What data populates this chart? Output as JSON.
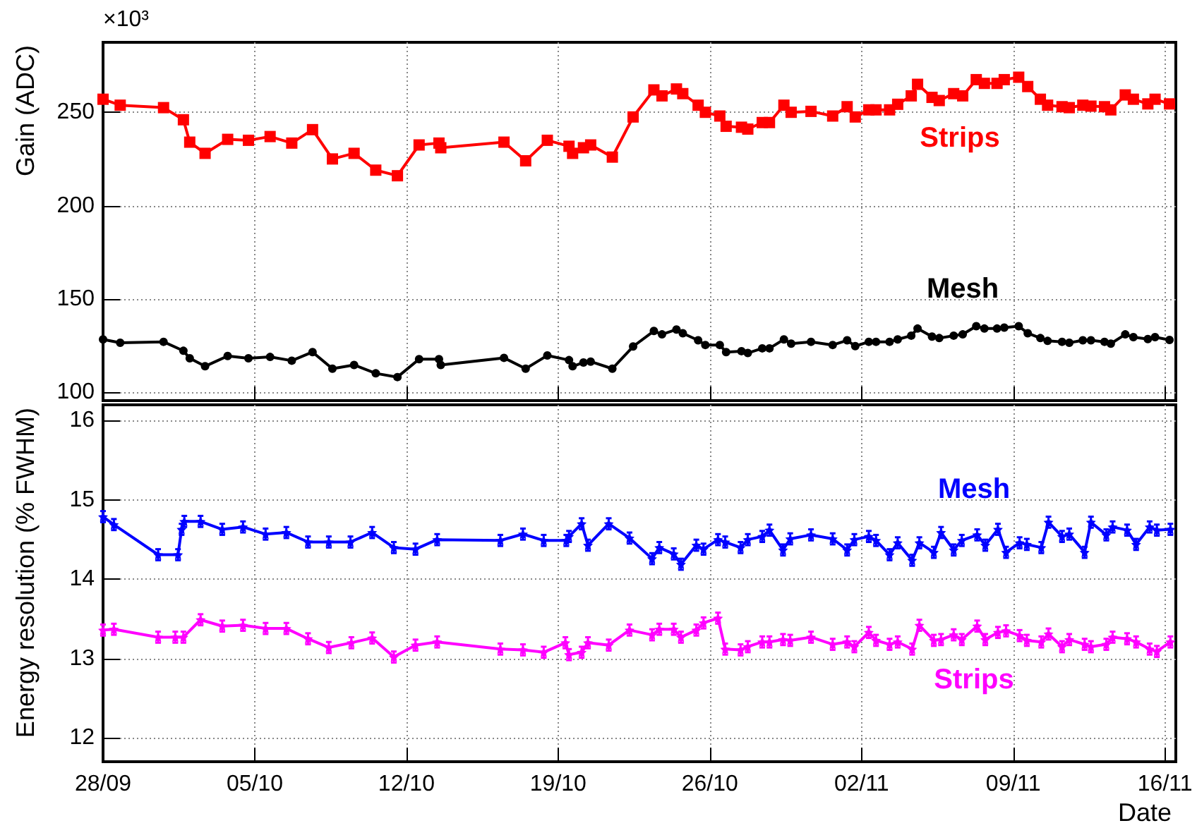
{
  "chart_data": [
    {
      "type": "line",
      "ylabel": "Gain (ADC)",
      "annotations": [
        "×10³"
      ],
      "x": [
        "--09-28T00:00",
        "--09-28T19:00",
        "--09-30T19:00",
        "--10-01T17:00",
        "--10-02T00:00",
        "--10-02T17:00",
        "--10-03T18:00",
        "--10-04T17:00",
        "--10-05T17:00",
        "--10-06T17:00",
        "--10-07T16:00",
        "--10-08T14:00",
        "--10-09T14:00",
        "--10-10T14:00",
        "--10-11T14:00",
        "--10-12T14:00",
        "--10-13T12:00",
        "--10-13T14:00",
        "--10-16T12:00",
        "--10-17T12:00",
        "--10-18T12:00",
        "--10-19T12:00",
        "--10-19T16:00",
        "--10-20T04:00",
        "--10-20T12:00",
        "--10-21T12:00",
        "--10-22T11:00",
        "--10-23T10:00",
        "--10-23T19:00",
        "--10-24T11:00",
        "--10-24T18:00",
        "--10-25T11:00",
        "--10-25T19:00",
        "--10-26T11:00",
        "--10-26T18:00",
        "--10-27T11:00",
        "--10-27T18:00",
        "--10-28T10:00",
        "--10-28T18:00",
        "--10-29T10:00",
        "--10-29T18:00",
        "--10-30T16:00",
        "--10-31T16:00",
        "--11-01T08:00",
        "--11-01T17:00",
        "--11-02T08:00",
        "--11-02T16:00",
        "--11-03T07:00",
        "--11-03T16:00",
        "--11-04T07:00",
        "--11-04T14:00",
        "--11-05T06:00",
        "--11-05T14:00",
        "--11-06T06:00",
        "--11-06T16:00",
        "--11-07T07:00",
        "--11-07T16:00",
        "--11-08T06:00",
        "--11-08T14:00",
        "--11-09T06:00",
        "--11-09T16:00",
        "--11-10T06:00",
        "--11-10T14:00",
        "--11-11T06:00",
        "--11-11T14:00",
        "--11-12T05:00",
        "--11-12T14:00",
        "--11-13T05:00",
        "--11-13T12:00",
        "--11-14T04:00",
        "--11-14T13:00",
        "--11-15T05:00",
        "--11-15T13:00",
        "--11-16T05:00"
      ],
      "series": [
        {
          "name": "Strips",
          "color": "#ff0000",
          "marker": "square",
          "values": [
            257,
            253.8,
            252.5,
            246,
            234,
            228,
            235.5,
            235,
            237,
            233.5,
            240.7,
            225,
            228,
            219,
            216,
            232.5,
            233.5,
            231,
            234,
            224,
            235,
            231.8,
            228,
            231,
            232.5,
            226,
            247.5,
            262,
            258.8,
            262.5,
            260,
            253.8,
            250,
            248,
            242.5,
            242,
            241,
            244.5,
            244.5,
            253.8,
            250,
            250.5,
            248,
            253,
            247.5,
            251.3,
            251.3,
            251.3,
            254.3,
            258.8,
            265,
            258,
            256.3,
            260,
            258.8,
            267.5,
            265.5,
            265.5,
            267.5,
            268.8,
            263.8,
            257,
            253.8,
            253,
            252.5,
            253.8,
            253.3,
            253,
            251.3,
            259.3,
            257,
            254.5,
            257,
            254.5
          ]
        },
        {
          "name": "Mesh",
          "color": "#000000",
          "marker": "circle",
          "values": [
            128.3,
            126.5,
            127,
            122.2,
            118.2,
            113.9,
            119.4,
            118.2,
            118.9,
            116.9,
            121.5,
            112.6,
            114.6,
            110.1,
            108.1,
            117.7,
            117.7,
            114.6,
            118.4,
            112.6,
            119.7,
            117.2,
            113.9,
            115.9,
            116.4,
            112.6,
            124.5,
            132.8,
            131,
            133.6,
            131.6,
            127.8,
            125.3,
            125.3,
            121.5,
            122,
            121,
            123.5,
            123.5,
            128.3,
            126,
            127,
            125.3,
            127.8,
            124.7,
            127,
            127,
            127,
            128.3,
            130.3,
            134.1,
            129.8,
            129,
            130.3,
            131,
            135.4,
            134.1,
            134.1,
            134.6,
            135.4,
            131.6,
            129,
            127.5,
            127,
            126.5,
            127.8,
            127.8,
            127,
            126,
            131,
            129.5,
            128.5,
            129.5,
            128
          ]
        }
      ],
      "xlim": [
        "--09-28",
        "--11-16T12:00"
      ],
      "xticks": [
        {
          "value": "--09-28",
          "label": "28/09"
        },
        {
          "value": "--10-05",
          "label": "05/10"
        },
        {
          "value": "--10-12",
          "label": "12/10"
        },
        {
          "value": "--10-19",
          "label": "19/10"
        },
        {
          "value": "--10-26",
          "label": "26/10"
        },
        {
          "value": "--11-02",
          "label": "02/11"
        },
        {
          "value": "--11-09",
          "label": "09/11"
        },
        {
          "value": "--11-16",
          "label": "16/11"
        }
      ],
      "ylim": [
        95.5,
        287.5
      ],
      "yticks": [
        100,
        150,
        200,
        250
      ],
      "grid": true,
      "tick_labels": "y"
    },
    {
      "type": "line",
      "ylabel": "Energy resolution (% FWHM)",
      "xlabel": "Date",
      "series": [
        {
          "name": "Mesh",
          "color": "#0000ff",
          "marker": "star",
          "x": [
            "--09-28T00:00",
            "--09-28T12:00",
            "--09-30T13:00",
            "--10-01T11:00",
            "--10-01T15:00",
            "--10-01T18:00",
            "--10-02T12:00",
            "--10-03T12:00",
            "--10-04T11:00",
            "--10-05T12:00",
            "--10-06T11:00",
            "--10-07T11:00",
            "--10-08T10:00",
            "--10-09T10:00",
            "--10-10T10:00",
            "--10-11T10:00",
            "--10-12T10:00",
            "--10-13T10:00",
            "--10-16T08:00",
            "--10-17T09:00",
            "--10-18T08:00",
            "--10-19T09:00",
            "--10-19T12:00",
            "--10-20T02:00",
            "--10-20T09:00",
            "--10-21T08:00",
            "--10-22T07:00",
            "--10-23T08:00",
            "--10-23T16:00",
            "--10-24T08:00",
            "--10-24T16:00",
            "--10-25T09:00",
            "--10-25T17:00",
            "--10-26T09:00",
            "--10-26T17:00",
            "--10-27T10:00",
            "--10-27T18:00",
            "--10-28T10:00",
            "--10-28T18:00",
            "--10-29T09:00",
            "--10-29T17:00",
            "--10-30T16:00",
            "--10-31T16:00",
            "--11-01T08:00",
            "--11-01T16:00",
            "--11-02T08:00",
            "--11-02T16:00",
            "--11-03T07:00",
            "--11-03T16:00",
            "--11-04T08:00",
            "--11-04T16:00",
            "--11-05T08:00",
            "--11-05T16:00",
            "--11-06T06:00",
            "--11-06T15:00",
            "--11-07T08:00",
            "--11-07T17:00",
            "--11-08T07:00",
            "--11-08T16:00",
            "--11-09T07:00",
            "--11-09T15:00",
            "--11-10T07:00",
            "--11-10T15:00",
            "--11-11T06:00",
            "--11-11T14:00",
            "--11-12T07:00",
            "--11-12T14:00",
            "--11-13T07:00",
            "--11-13T14:00",
            "--11-14T06:00",
            "--11-14T16:00",
            "--11-15T07:00",
            "--11-15T15:00",
            "--11-16T06:00"
          ],
          "values": [
            14.79,
            14.69,
            14.31,
            14.31,
            14.63,
            14.73,
            14.73,
            14.63,
            14.66,
            14.57,
            14.59,
            14.47,
            14.47,
            14.47,
            14.59,
            14.4,
            14.38,
            14.5,
            14.49,
            14.57,
            14.49,
            14.49,
            14.54,
            14.7,
            14.43,
            14.7,
            14.52,
            14.26,
            14.4,
            14.32,
            14.19,
            14.43,
            14.38,
            14.5,
            14.47,
            14.4,
            14.5,
            14.54,
            14.62,
            14.37,
            14.51,
            14.56,
            14.51,
            14.37,
            14.5,
            14.54,
            14.49,
            14.31,
            14.46,
            14.24,
            14.46,
            14.34,
            14.59,
            14.37,
            14.49,
            14.56,
            14.43,
            14.63,
            14.34,
            14.46,
            14.44,
            14.4,
            14.72,
            14.54,
            14.57,
            14.34,
            14.72,
            14.56,
            14.66,
            14.62,
            14.44,
            14.66,
            14.62,
            14.63
          ],
          "errors": [
            0.07,
            0.07,
            0.07,
            0.07,
            0.07,
            0.07,
            0.07,
            0.07,
            0.07,
            0.07,
            0.07,
            0.07,
            0.07,
            0.07,
            0.07,
            0.07,
            0.07,
            0.07,
            0.07,
            0.07,
            0.07,
            0.07,
            0.07,
            0.07,
            0.07,
            0.07,
            0.07,
            0.07,
            0.07,
            0.07,
            0.07,
            0.07,
            0.07,
            0.07,
            0.07,
            0.07,
            0.07,
            0.07,
            0.07,
            0.07,
            0.07,
            0.07,
            0.07,
            0.07,
            0.07,
            0.07,
            0.07,
            0.07,
            0.07,
            0.07,
            0.07,
            0.07,
            0.07,
            0.07,
            0.07,
            0.07,
            0.07,
            0.07,
            0.07,
            0.07,
            0.07,
            0.07,
            0.07,
            0.07,
            0.07,
            0.07,
            0.07,
            0.07,
            0.07,
            0.07,
            0.07,
            0.07,
            0.07,
            0.07
          ]
        },
        {
          "name": "Strips",
          "color": "#ff00ff",
          "marker": "star",
          "x": [
            "--09-28T00:00",
            "--09-28T12:00",
            "--09-30T13:00",
            "--10-01T08:00",
            "--10-01T17:00",
            "--10-02T12:00",
            "--10-03T12:00",
            "--10-04T11:00",
            "--10-05T12:00",
            "--10-06T11:00",
            "--10-07T11:00",
            "--10-08T10:00",
            "--10-09T11:00",
            "--10-10T10:00",
            "--10-11T10:00",
            "--10-12T10:00",
            "--10-13T10:00",
            "--10-16T08:00",
            "--10-17T09:00",
            "--10-18T08:00",
            "--10-19T08:00",
            "--10-19T12:00",
            "--10-20T02:00",
            "--10-20T09:00",
            "--10-21T08:00",
            "--10-22T07:00",
            "--10-23T08:00",
            "--10-23T16:00",
            "--10-24T08:00",
            "--10-24T16:00",
            "--10-25T09:00",
            "--10-25T17:00",
            "--10-26T09:00",
            "--10-26T17:00",
            "--10-27T10:00",
            "--10-27T18:00",
            "--10-28T10:00",
            "--10-28T18:00",
            "--10-29T09:00",
            "--10-29T17:00",
            "--10-30T16:00",
            "--10-31T16:00",
            "--11-01T08:00",
            "--11-01T16:00",
            "--11-02T08:00",
            "--11-02T16:00",
            "--11-03T07:00",
            "--11-03T16:00",
            "--11-04T08:00",
            "--11-04T16:00",
            "--11-05T08:00",
            "--11-05T16:00",
            "--11-06T06:00",
            "--11-06T15:00",
            "--11-07T08:00",
            "--11-07T17:00",
            "--11-08T07:00",
            "--11-08T16:00",
            "--11-09T07:00",
            "--11-09T15:00",
            "--11-10T07:00",
            "--11-10T15:00",
            "--11-11T06:00",
            "--11-11T14:00",
            "--11-12T07:00",
            "--11-12T14:00",
            "--11-13T07:00",
            "--11-13T14:00",
            "--11-14T06:00",
            "--11-14T16:00",
            "--11-15T07:00",
            "--11-15T15:00",
            "--11-16T06:00"
          ],
          "values": [
            13.36,
            13.37,
            13.27,
            13.27,
            13.27,
            13.49,
            13.41,
            13.42,
            13.38,
            13.38,
            13.25,
            13.14,
            13.2,
            13.26,
            13.02,
            13.17,
            13.21,
            13.12,
            13.11,
            13.08,
            13.2,
            13.05,
            13.08,
            13.2,
            13.17,
            13.36,
            13.3,
            13.37,
            13.37,
            13.27,
            13.36,
            13.45,
            13.51,
            13.12,
            13.11,
            13.15,
            13.21,
            13.21,
            13.24,
            13.23,
            13.27,
            13.18,
            13.21,
            13.15,
            13.33,
            13.23,
            13.18,
            13.21,
            13.12,
            13.42,
            13.23,
            13.24,
            13.3,
            13.24,
            13.41,
            13.24,
            13.33,
            13.35,
            13.29,
            13.23,
            13.21,
            13.31,
            13.15,
            13.24,
            13.18,
            13.15,
            13.18,
            13.27,
            13.25,
            13.21,
            13.12,
            13.09,
            13.21
          ],
          "errors": [
            0.07,
            0.07,
            0.07,
            0.07,
            0.07,
            0.07,
            0.07,
            0.07,
            0.07,
            0.07,
            0.07,
            0.07,
            0.07,
            0.07,
            0.07,
            0.07,
            0.07,
            0.07,
            0.07,
            0.07,
            0.07,
            0.07,
            0.07,
            0.07,
            0.07,
            0.07,
            0.07,
            0.07,
            0.07,
            0.07,
            0.07,
            0.07,
            0.07,
            0.07,
            0.07,
            0.07,
            0.07,
            0.07,
            0.07,
            0.07,
            0.07,
            0.07,
            0.07,
            0.07,
            0.07,
            0.07,
            0.07,
            0.07,
            0.07,
            0.07,
            0.07,
            0.07,
            0.07,
            0.07,
            0.07,
            0.07,
            0.07,
            0.07,
            0.07,
            0.07,
            0.07,
            0.07,
            0.07,
            0.07,
            0.07,
            0.07,
            0.07,
            0.07,
            0.07,
            0.07,
            0.07,
            0.07,
            0.07
          ]
        }
      ],
      "xlim": [
        "--09-28",
        "--11-16T12:00"
      ],
      "xticks": [
        {
          "value": "--09-28",
          "label": "28/09"
        },
        {
          "value": "--10-05",
          "label": "05/10"
        },
        {
          "value": "--10-12",
          "label": "12/10"
        },
        {
          "value": "--10-19",
          "label": "19/10"
        },
        {
          "value": "--10-26",
          "label": "26/10"
        },
        {
          "value": "--11-02",
          "label": "02/11"
        },
        {
          "value": "--11-09",
          "label": "09/11"
        },
        {
          "value": "--11-16",
          "label": "16/11"
        }
      ],
      "ylim": [
        11.7,
        16.2
      ],
      "yticks": [
        12,
        13,
        14,
        15,
        16
      ],
      "grid": true
    }
  ]
}
